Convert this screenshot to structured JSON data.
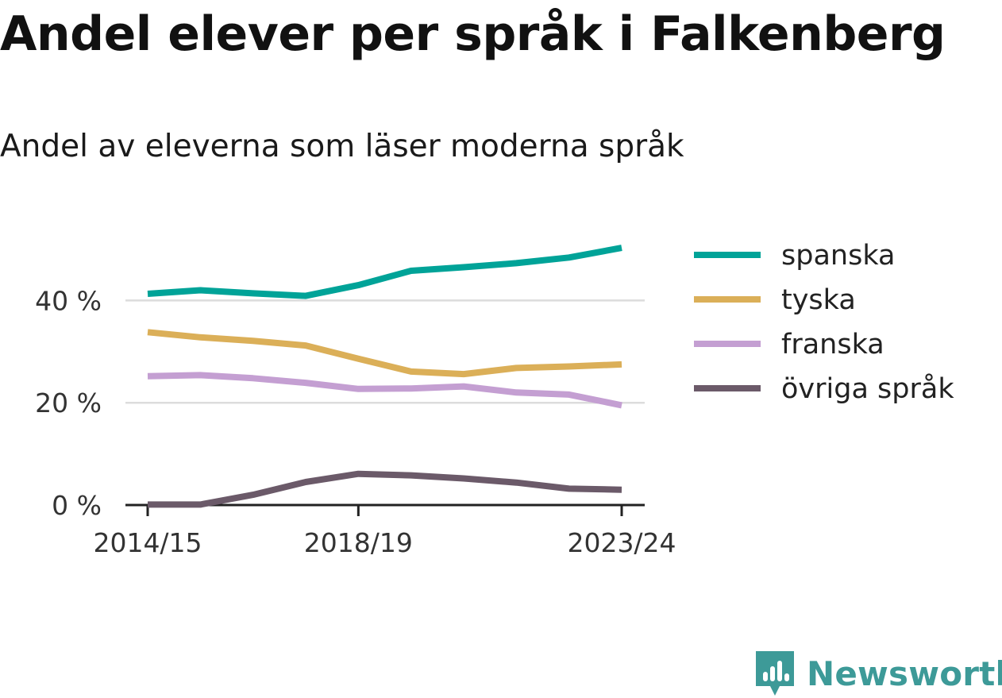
{
  "title": "Andel elever per språk i Falkenberg",
  "subtitle": "Andel av eleverna som läser moderna språk",
  "brand": {
    "name": "Newsworthy",
    "icon": "newsworthy-logo-icon",
    "color": "#3d9a98"
  },
  "chart_data": {
    "type": "line",
    "title": "Andel elever per språk i Falkenberg",
    "subtitle": "Andel av eleverna som läser moderna språk",
    "x": [
      "2014/15",
      "2015/16",
      "2016/17",
      "2017/18",
      "2018/19",
      "2019/20",
      "2020/21",
      "2021/22",
      "2022/23",
      "2023/24"
    ],
    "x_tick_labels": [
      "2014/15",
      "2018/19",
      "2023/24"
    ],
    "y_ticks": [
      0,
      20,
      40
    ],
    "y_tick_labels": [
      "0 %",
      "20 %",
      "40 %"
    ],
    "ylim": [
      0,
      52
    ],
    "grid": "horizontal",
    "legend_position": "right",
    "series": [
      {
        "name": "spanska",
        "color": "#00a398",
        "values": [
          41.3,
          42.0,
          41.4,
          40.9,
          43.0,
          45.8,
          46.5,
          47.3,
          48.4,
          50.3
        ]
      },
      {
        "name": "tyska",
        "color": "#dbaf58",
        "values": [
          33.8,
          32.8,
          32.1,
          31.2,
          28.6,
          26.1,
          25.6,
          26.8,
          27.1,
          27.5
        ]
      },
      {
        "name": "franska",
        "color": "#c49fd2",
        "values": [
          25.2,
          25.4,
          24.8,
          23.9,
          22.7,
          22.8,
          23.2,
          22.0,
          21.6,
          19.5
        ]
      },
      {
        "name": "övriga språk",
        "color": "#6b5a69",
        "values": [
          0.1,
          0.1,
          2.0,
          4.5,
          6.1,
          5.8,
          5.2,
          4.4,
          3.2,
          3.0
        ]
      }
    ]
  }
}
